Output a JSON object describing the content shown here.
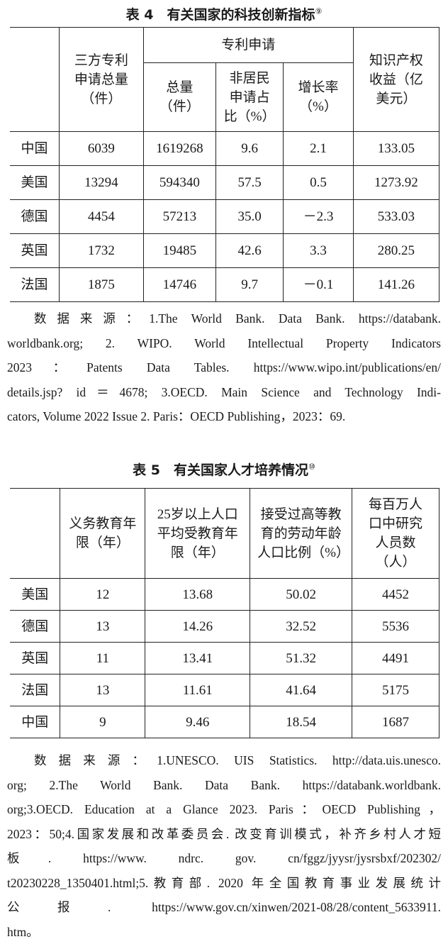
{
  "table4": {
    "title": "表 4　有关国家的科技创新指标",
    "note_ref": "⑨",
    "group_header": "专利申请",
    "headers": [
      "",
      "三方专利申请总量（件）",
      "总量（件）",
      "非居民申请占比（%）",
      "增长率（%）",
      "知识产权收益（亿美元）"
    ],
    "rows": [
      [
        "中国",
        "6039",
        "1619268",
        "9.6",
        "2.1",
        "133.05"
      ],
      [
        "美国",
        "13294",
        "594340",
        "57.5",
        "0.5",
        "1273.92"
      ],
      [
        "德国",
        "4454",
        "57213",
        "35.0",
        "－2.3",
        "533.03"
      ],
      [
        "英国",
        "1732",
        "19485",
        "42.6",
        "3.3",
        "280.25"
      ],
      [
        "法国",
        "1875",
        "14746",
        "9.7",
        "－0.1",
        "141.26"
      ]
    ],
    "source_lines": [
      "数据来源：1.The World Bank. Data Bank. https://databank.",
      "worldbank.org; 2. WIPO. World Intellectual Property Indicators",
      "2023：Patents Data Tables. https://www.wipo.int/publications/en/",
      "details.jsp? id＝4678; 3.OECD. Main Science and Technology Indi-",
      "cators, Volume 2022 Issue 2. Paris：OECD Publishing，2023：69."
    ]
  },
  "table5": {
    "title": "表 5　有关国家人才培养情况",
    "note_ref": "⑩",
    "headers": [
      "",
      "义务教育年限（年）",
      "25岁以上人口平均受教育年限（年）",
      "接受过高等教育的劳动年龄人口比例（%）",
      "每百万人口中研究人员数（人）"
    ],
    "rows": [
      [
        "美国",
        "12",
        "13.68",
        "50.02",
        "4452"
      ],
      [
        "德国",
        "13",
        "14.26",
        "32.52",
        "5536"
      ],
      [
        "英国",
        "11",
        "13.41",
        "51.32",
        "4491"
      ],
      [
        "法国",
        "13",
        "11.61",
        "41.64",
        "5175"
      ],
      [
        "中国",
        "9",
        "9.46",
        "18.54",
        "1687"
      ]
    ],
    "source_lines": [
      "数据来源：1.UNESCO. UIS Statistics. http://data.uis.unesco.",
      "org; 2.The World Bank. Data Bank. https://databank.worldbank.",
      "org;3.OECD. Education at a Glance 2023. Paris：OECD Publishing，",
      "2023：50;4.国家发展和改革委员会. 改变育训模式，补齐乡村人才短",
      "板.   https://www.   ndrc.   gov.   cn/fggz/jyysr/jysrsbxf/202302/",
      "t20230228_1350401.html;5.教育部. 2020 年全国教育事业发展统计",
      "公报. https://www.gov.cn/xinwen/2021-08/28/content_5633911.",
      "htm。"
    ]
  }
}
